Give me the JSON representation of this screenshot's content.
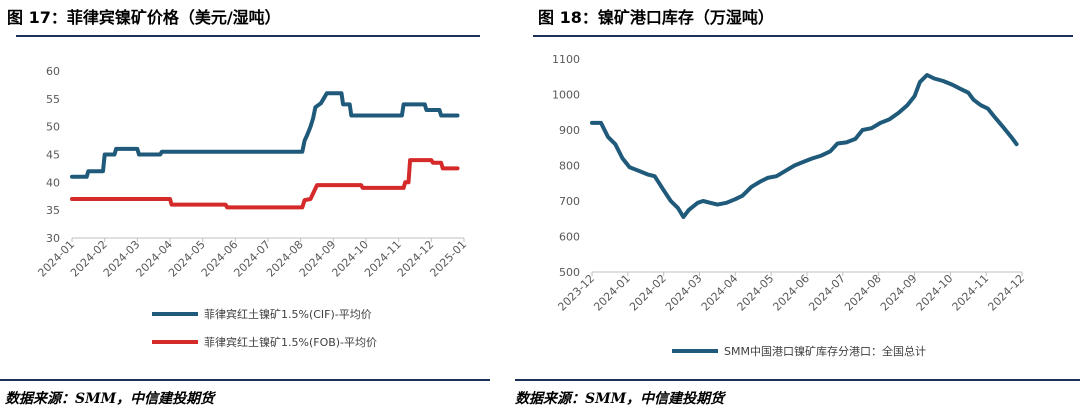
{
  "figure17": {
    "title": "图 17：菲律宾镍矿价格（美元/湿吨）",
    "source": "数据来源：SMM，中信建投期货"
  },
  "figure18": {
    "title": "图 18：镍矿港口库存（万湿吨）",
    "source": "数据来源：SMM，中信建投期货"
  },
  "chart_data": [
    {
      "type": "line",
      "title": "",
      "xlabel": "",
      "ylabel": "",
      "ylim": [
        30,
        60
      ],
      "yticks": [
        "30",
        "35",
        "40",
        "45",
        "50",
        "55",
        "60"
      ],
      "x_tick_labels": [
        "2024-01",
        "2024-02",
        "2024-03",
        "2024-04",
        "2024-05",
        "2024-06",
        "2024-07",
        "2024-08",
        "2024-09",
        "2024-10",
        "2024-11",
        "2024-12",
        "2025-01"
      ],
      "grid": false,
      "legend_position": "bottom",
      "series": [
        {
          "name": "菲律宾红土镍矿1.5%(CIF)-平均价",
          "color": "#1f5a7a",
          "points": [
            [
              0,
              41
            ],
            [
              0.45,
              41
            ],
            [
              0.5,
              42
            ],
            [
              0.95,
              42
            ],
            [
              1,
              45
            ],
            [
              1.3,
              45
            ],
            [
              1.35,
              46
            ],
            [
              2.0,
              46
            ],
            [
              2.05,
              45
            ],
            [
              2.7,
              45
            ],
            [
              2.75,
              45.5
            ],
            [
              7.05,
              45.5
            ],
            [
              7.12,
              47.5
            ],
            [
              7.2,
              48.5
            ],
            [
              7.3,
              50
            ],
            [
              7.38,
              51.5
            ],
            [
              7.45,
              53.5
            ],
            [
              7.62,
              54.2
            ],
            [
              7.8,
              56
            ],
            [
              8.25,
              56
            ],
            [
              8.3,
              54
            ],
            [
              8.5,
              54
            ],
            [
              8.55,
              52
            ],
            [
              10.1,
              52
            ],
            [
              10.15,
              54
            ],
            [
              10.8,
              54
            ],
            [
              10.85,
              53
            ],
            [
              11.25,
              53
            ],
            [
              11.3,
              52
            ],
            [
              11.8,
              52
            ]
          ]
        },
        {
          "name": "菲律宾红土镍矿1.5%(FOB)-平均价",
          "color": "#d42a2a",
          "points": [
            [
              0,
              37
            ],
            [
              3.0,
              37
            ],
            [
              3.05,
              36
            ],
            [
              4.7,
              36
            ],
            [
              4.75,
              35.5
            ],
            [
              7.05,
              35.5
            ],
            [
              7.12,
              36.8
            ],
            [
              7.3,
              37
            ],
            [
              7.5,
              39.5
            ],
            [
              8.85,
              39.5
            ],
            [
              8.9,
              39
            ],
            [
              10.15,
              39
            ],
            [
              10.2,
              40
            ],
            [
              10.3,
              40
            ],
            [
              10.35,
              44
            ],
            [
              11.0,
              44
            ],
            [
              11.05,
              43.5
            ],
            [
              11.3,
              43.5
            ],
            [
              11.35,
              42.5
            ],
            [
              11.8,
              42.5
            ]
          ]
        }
      ]
    },
    {
      "type": "line",
      "title": "",
      "xlabel": "",
      "ylabel": "",
      "ylim": [
        500,
        1100
      ],
      "yticks": [
        "500",
        "600",
        "700",
        "800",
        "900",
        "1000",
        "1100"
      ],
      "x_tick_labels": [
        "2023-12",
        "2024-01",
        "2024-02",
        "2024-03",
        "2024-04",
        "2024-05",
        "2024-06",
        "2024-07",
        "2024-08",
        "2024-09",
        "2024-10",
        "2024-11",
        "2024-12"
      ],
      "grid": false,
      "legend_position": "bottom",
      "series": [
        {
          "name": "SMM中国港口镍矿库存分港口：全国总计",
          "color": "#1f5a7a",
          "points": [
            [
              0,
              920
            ],
            [
              0.25,
              920
            ],
            [
              0.45,
              880
            ],
            [
              0.65,
              860
            ],
            [
              0.85,
              820
            ],
            [
              1.05,
              795
            ],
            [
              1.3,
              785
            ],
            [
              1.55,
              775
            ],
            [
              1.75,
              770
            ],
            [
              2.0,
              730
            ],
            [
              2.2,
              700
            ],
            [
              2.4,
              680
            ],
            [
              2.55,
              655
            ],
            [
              2.7,
              675
            ],
            [
              2.95,
              695
            ],
            [
              3.1,
              700
            ],
            [
              3.3,
              695
            ],
            [
              3.5,
              690
            ],
            [
              3.75,
              695
            ],
            [
              4.0,
              705
            ],
            [
              4.2,
              715
            ],
            [
              4.45,
              740
            ],
            [
              4.7,
              755
            ],
            [
              4.9,
              765
            ],
            [
              5.15,
              770
            ],
            [
              5.4,
              785
            ],
            [
              5.65,
              800
            ],
            [
              5.9,
              810
            ],
            [
              6.15,
              820
            ],
            [
              6.4,
              828
            ],
            [
              6.65,
              840
            ],
            [
              6.85,
              862
            ],
            [
              7.1,
              865
            ],
            [
              7.35,
              875
            ],
            [
              7.55,
              900
            ],
            [
              7.8,
              905
            ],
            [
              8.05,
              920
            ],
            [
              8.3,
              930
            ],
            [
              8.55,
              948
            ],
            [
              8.8,
              970
            ],
            [
              9.0,
              995
            ],
            [
              9.15,
              1035
            ],
            [
              9.35,
              1055
            ],
            [
              9.55,
              1045
            ],
            [
              9.8,
              1038
            ],
            [
              10.05,
              1028
            ],
            [
              10.3,
              1015
            ],
            [
              10.5,
              1005
            ],
            [
              10.65,
              985
            ],
            [
              10.85,
              970
            ],
            [
              11.05,
              960
            ],
            [
              11.25,
              935
            ],
            [
              11.5,
              905
            ],
            [
              11.7,
              880
            ],
            [
              11.85,
              860
            ]
          ]
        }
      ]
    }
  ]
}
